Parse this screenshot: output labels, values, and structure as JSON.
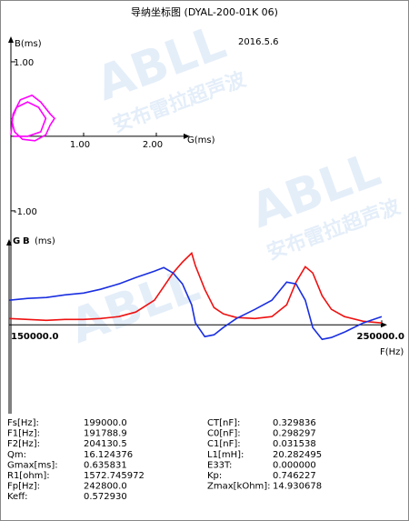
{
  "title": "导纳坐标图  (DYAL-200-01K     06)",
  "date": "2016.5.6",
  "watermark": {
    "brand": "ABLL",
    "text": "安布雷拉超声波"
  },
  "chart_data": [
    {
      "type": "line",
      "x_label": "G(ms)",
      "y_label": "B(ms)",
      "color": "#ff00ff",
      "x": [
        0,
        0.03,
        0.13,
        0.29,
        0.41,
        0.54,
        0.6,
        0.54,
        0.48,
        0.33,
        0.16,
        0.05,
        0.01,
        0.08,
        0.23,
        0.38,
        0.48,
        0.41,
        0.23,
        0.03
      ],
      "values": [
        0.02,
        0.3,
        0.49,
        0.55,
        0.46,
        0.3,
        0.24,
        0.15,
        0.02,
        -0.06,
        -0.04,
        0.06,
        0.22,
        0.39,
        0.46,
        0.39,
        0.24,
        0.06,
        0,
        0
      ],
      "xlim": [
        0,
        2.4
      ],
      "ylim": [
        -1.16,
        1.28
      ],
      "xticks": [
        {
          "value": 1,
          "label": "1.00"
        },
        {
          "value": 2,
          "label": "2.00"
        }
      ],
      "yticks": [
        {
          "value": 1,
          "label": "1.00"
        },
        {
          "value": -1,
          "label": "-1.00"
        }
      ]
    },
    {
      "type": "line",
      "x_label": "F(Hz)",
      "y_label": "(ms)",
      "x": [
        150000,
        155000,
        160000,
        165000,
        170000,
        174500,
        179500,
        184000,
        189000,
        191500,
        194000,
        196500,
        199000,
        200000,
        202500,
        205000,
        207500,
        211000,
        216000,
        220500,
        224500,
        227000,
        229500,
        231500,
        234000,
        236500,
        240000,
        245000,
        250000
      ],
      "series": [
        {
          "name": "G",
          "color": "#ee1111",
          "values": [
            0.056,
            0.048,
            0.04,
            0.048,
            0.048,
            0.056,
            0.073,
            0.113,
            0.218,
            0.339,
            0.46,
            0.556,
            0.636,
            0.524,
            0.315,
            0.153,
            0.097,
            0.065,
            0.056,
            0.073,
            0.177,
            0.379,
            0.516,
            0.46,
            0.258,
            0.137,
            0.073,
            0.032,
            0.016
          ]
        },
        {
          "name": "B",
          "color": "#1a2fe0",
          "values": [
            0.218,
            0.234,
            0.242,
            0.266,
            0.282,
            0.315,
            0.363,
            0.419,
            0.476,
            0.508,
            0.46,
            0.363,
            0.177,
            0.016,
            -0.105,
            -0.089,
            -0.024,
            0.056,
            0.137,
            0.218,
            0.379,
            0.363,
            0.218,
            -0.024,
            -0.129,
            -0.113,
            -0.065,
            0.016,
            0.073
          ]
        }
      ],
      "xlim": [
        150000,
        250000
      ],
      "ylim": [
        -0.2,
        0.72
      ],
      "xticks": [
        {
          "value": 150000,
          "label": "150000.0"
        },
        {
          "value": 250000,
          "label": "250000.0"
        }
      ]
    }
  ],
  "parameters": {
    "left": [
      [
        "Fs[Hz]:",
        "199000.0"
      ],
      [
        "F1[Hz]:",
        "191788.9"
      ],
      [
        "F2[Hz]:",
        "204130.5"
      ],
      [
        "Qm:",
        "16.124376"
      ],
      [
        "Gmax[ms]:",
        "0.635831"
      ],
      [
        "R1[ohm]:",
        "1572.745972"
      ],
      [
        "Fp[Hz]:",
        "242800.0"
      ],
      [
        "Keff:",
        "0.572930"
      ]
    ],
    "right": [
      [
        "CT[nF]:",
        "0.329836"
      ],
      [
        "C0[nF]:",
        "0.298297"
      ],
      [
        "C1[nF]:",
        "0.031538"
      ],
      [
        "L1[mH]:",
        "20.282495"
      ],
      [
        "E33T:",
        "0.000000"
      ],
      [
        "Kp:",
        "0.746227"
      ],
      [
        "Zmax[kOhm]:",
        "14.930678"
      ]
    ]
  }
}
